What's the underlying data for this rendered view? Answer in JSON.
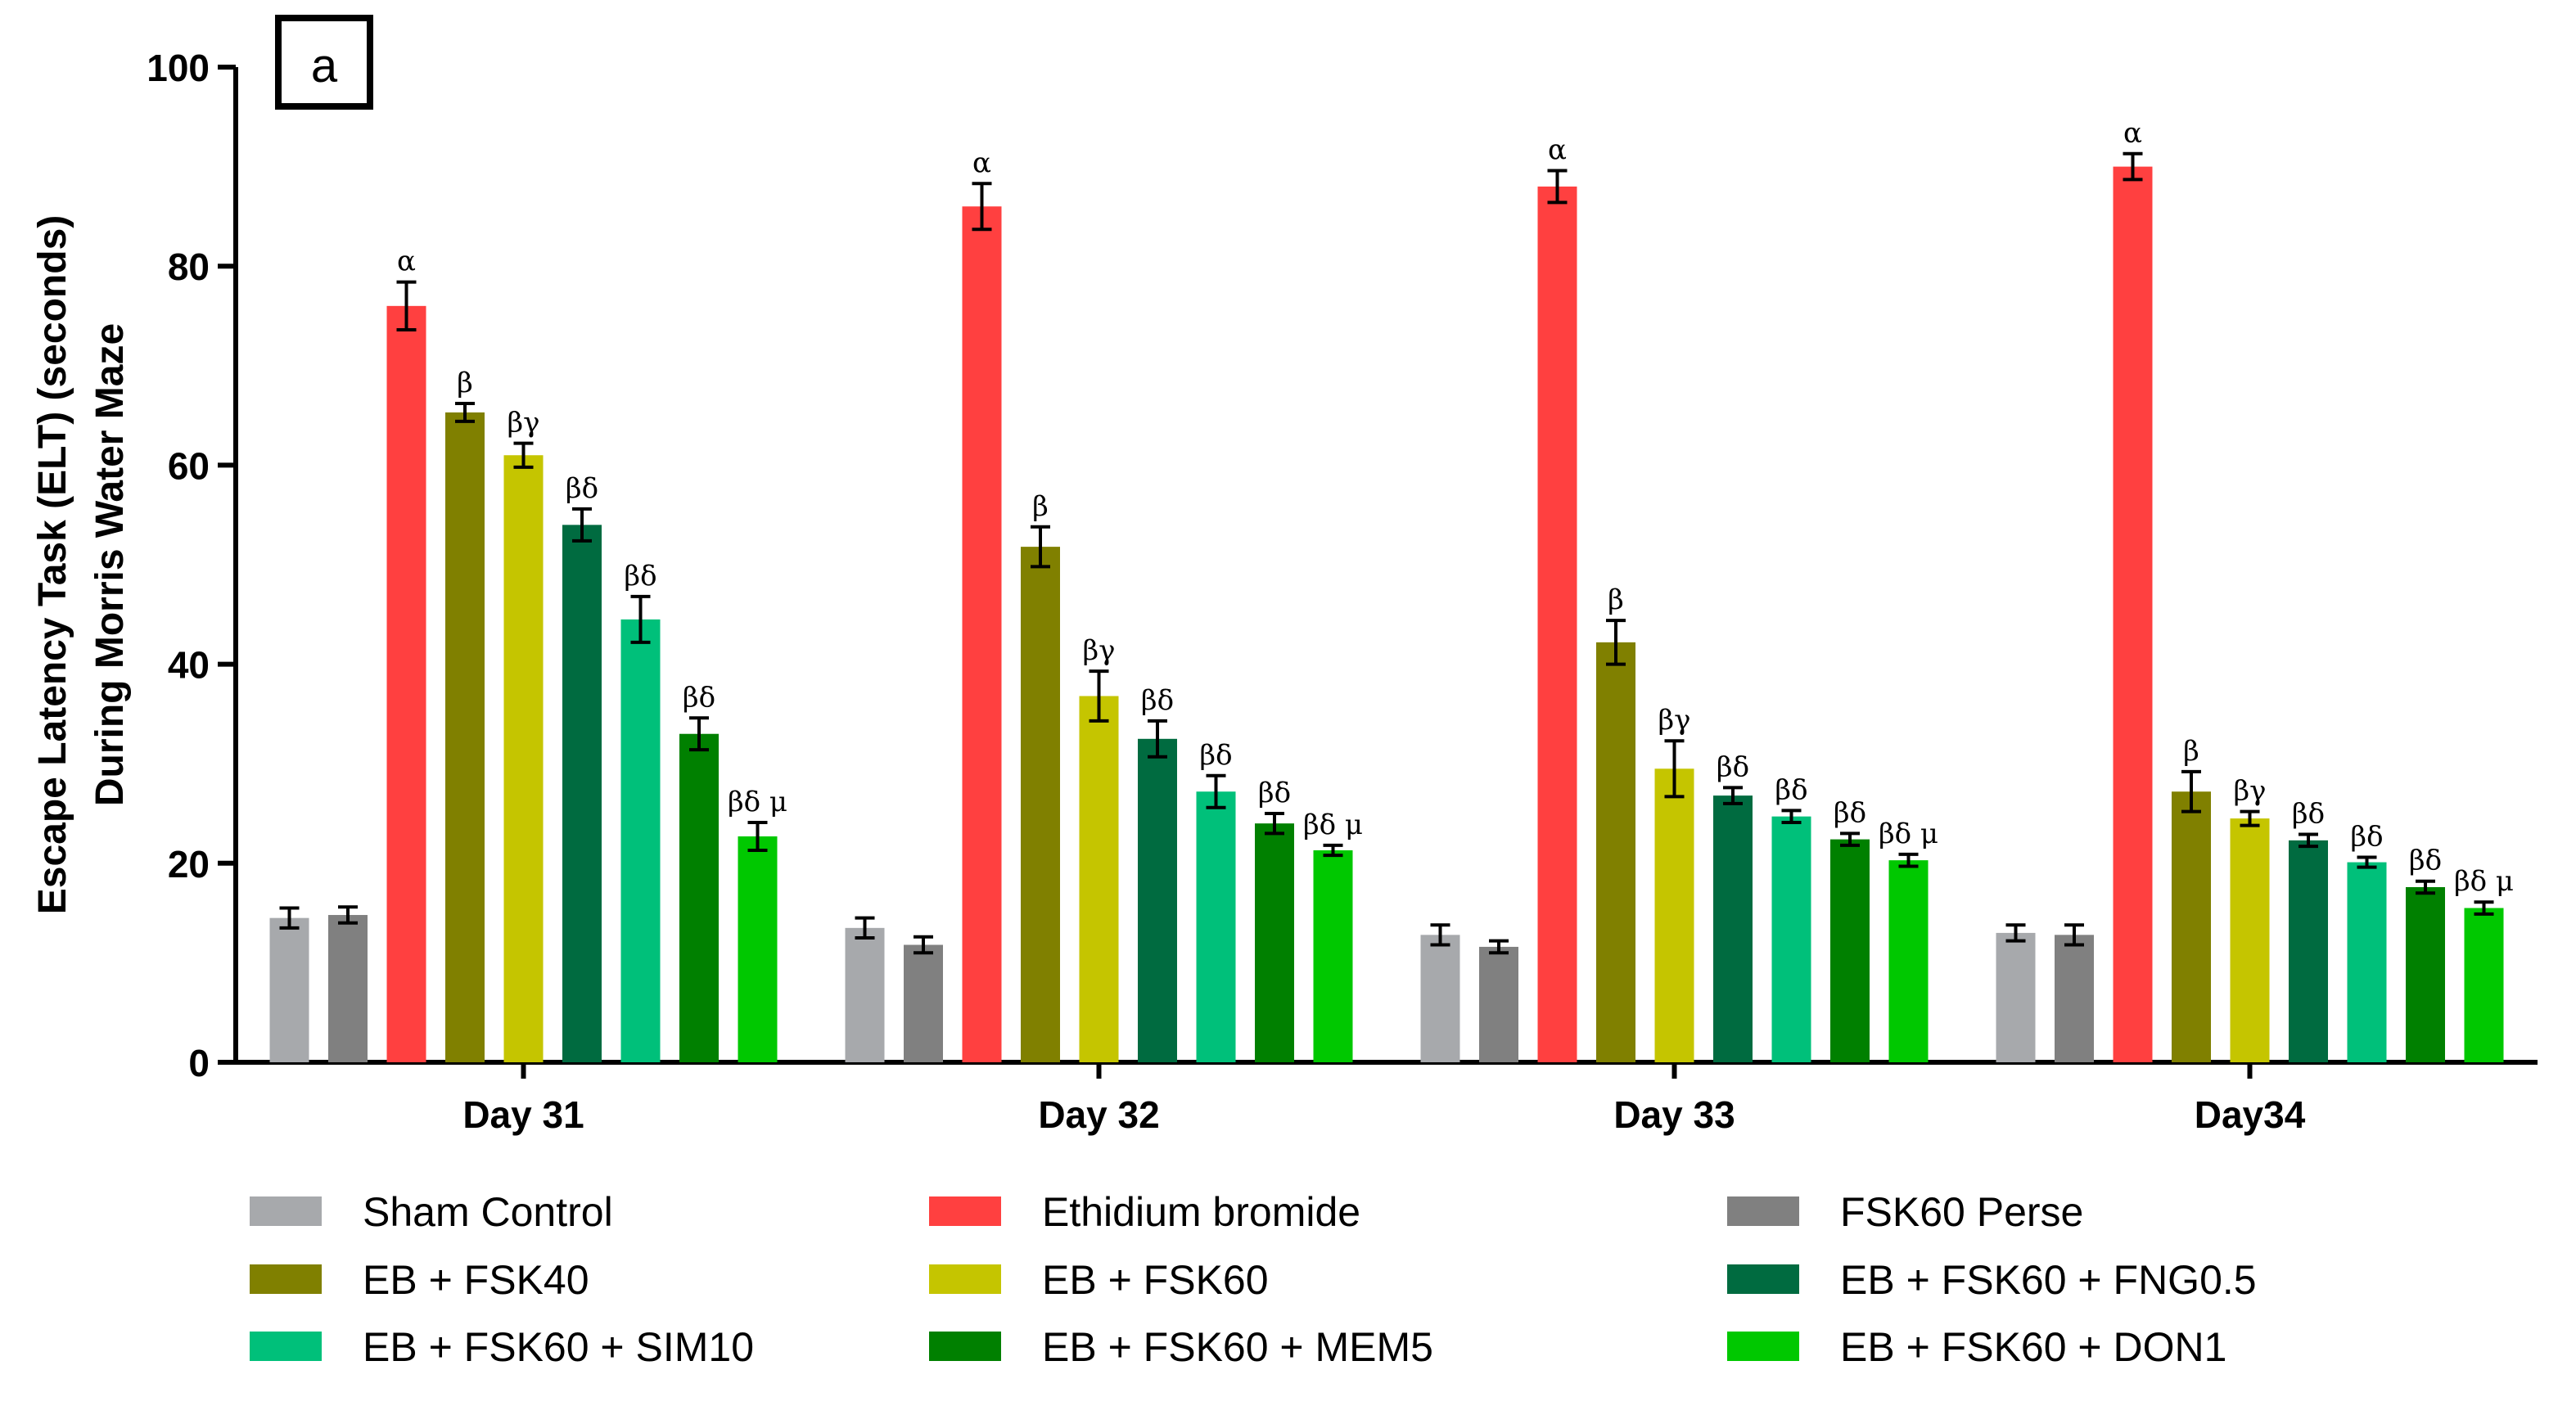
{
  "chart_data": {
    "type": "bar",
    "panel_label": "a",
    "ylabel_line1": "Escape Latency  Task (ELT) (seconds)",
    "ylabel_line2": "During Morris Water Maze",
    "xlabel": "",
    "ylim": [
      0,
      100
    ],
    "yticks": [
      "0",
      "20",
      "40",
      "60",
      "80",
      "100"
    ],
    "categories": [
      "Day 31",
      "Day 32",
      "Day 33",
      "Day34"
    ],
    "series": [
      {
        "name": "Sham Control",
        "color": "#A7A9AC",
        "values": [
          14.5,
          13.5,
          12.8,
          13.0
        ],
        "errors": [
          1.0,
          1.0,
          1.0,
          0.8
        ],
        "annotations": [
          "",
          "",
          "",
          ""
        ]
      },
      {
        "name": "FSK60 Perse",
        "color": "#808080",
        "values": [
          14.8,
          11.8,
          11.6,
          12.8
        ],
        "errors": [
          0.8,
          0.8,
          0.6,
          1.0
        ],
        "annotations": [
          "",
          "",
          "",
          ""
        ]
      },
      {
        "name": "Ethidium bromide",
        "color": "#FF4040",
        "values": [
          76,
          86,
          88,
          90
        ],
        "errors": [
          2.4,
          2.3,
          1.6,
          1.3
        ],
        "annotations": [
          "α",
          "α",
          "α",
          "α"
        ]
      },
      {
        "name": "EB + FSK40",
        "color": "#808000",
        "values": [
          65.3,
          51.8,
          42.2,
          27.2
        ],
        "errors": [
          0.9,
          2.0,
          2.2,
          2.0
        ],
        "annotations": [
          "β",
          "β",
          "β",
          "β"
        ]
      },
      {
        "name": "EB + FSK60",
        "color": "#C5C500",
        "values": [
          61,
          36.8,
          29.5,
          24.5
        ],
        "errors": [
          1.2,
          2.5,
          2.8,
          0.7
        ],
        "annotations": [
          "βγ",
          "βγ",
          "βγ",
          "βγ"
        ]
      },
      {
        "name": "EB + FSK60 + FNG0.5",
        "color": "#006B40",
        "values": [
          54,
          32.5,
          26.8,
          22.3
        ],
        "errors": [
          1.6,
          1.8,
          0.8,
          0.6
        ],
        "annotations": [
          "βδ",
          "βδ",
          "βδ",
          "βδ"
        ]
      },
      {
        "name": "EB + FSK60 + SIM10",
        "color": "#00C07A",
        "values": [
          44.5,
          27.2,
          24.7,
          20.1
        ],
        "errors": [
          2.3,
          1.6,
          0.6,
          0.5
        ],
        "annotations": [
          "βδ",
          "βδ",
          "βδ",
          "βδ"
        ]
      },
      {
        "name": "EB + FSK60 + MEM5",
        "color": "#008000",
        "values": [
          33,
          24,
          22.4,
          17.6
        ],
        "errors": [
          1.6,
          1.0,
          0.6,
          0.6
        ],
        "annotations": [
          "βδ",
          "βδ",
          "βδ",
          "βδ"
        ]
      },
      {
        "name": "EB + FSK60 + DON1",
        "color": "#00C800",
        "values": [
          22.7,
          21.3,
          20.3,
          15.5
        ],
        "errors": [
          1.4,
          0.5,
          0.6,
          0.6
        ],
        "annotations": [
          "βδ μ",
          "βδ μ",
          "βδ μ",
          "βδ μ"
        ]
      }
    ],
    "legend": {
      "placement": "bottom",
      "columns": [
        [
          "Sham Control",
          "EB + FSK40",
          "EB + FSK60 + SIM10"
        ],
        [
          "Ethidium bromide",
          "EB + FSK60",
          "EB + FSK60 + MEM5"
        ],
        [
          "FSK60 Perse",
          "EB + FSK60 + FNG0.5",
          "EB + FSK60 + DON1"
        ]
      ]
    }
  }
}
